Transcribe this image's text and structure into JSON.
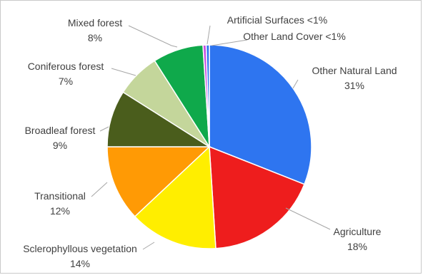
{
  "chart_data": {
    "type": "pie",
    "title": "",
    "unit": "%",
    "series": [
      {
        "categories": [
          "Other Natural Land",
          "Agriculture",
          "Sclerophyllous vegetation",
          "Transitional",
          "Broadleaf forest",
          "Coniferous forest",
          "Mixed forest",
          "Artificial Surfaces",
          "Other Land Cover"
        ],
        "values": [
          31,
          18,
          14,
          12,
          9,
          7,
          8,
          0.5,
          0.5
        ],
        "value_labels": [
          "31%",
          "18%",
          "14%",
          "12%",
          "9%",
          "7%",
          "8%",
          "<1%",
          "<1%"
        ],
        "colors": [
          "#2e75f0",
          "#ee1d1d",
          "#ffee00",
          "#ff9a05",
          "#4a5d1c",
          "#c4d69b",
          "#0fa94b",
          "#c94ee0",
          "#2e75f0"
        ]
      }
    ],
    "legend": "none (data labels outside slices with leader lines)",
    "start_angle_deg": 0
  }
}
